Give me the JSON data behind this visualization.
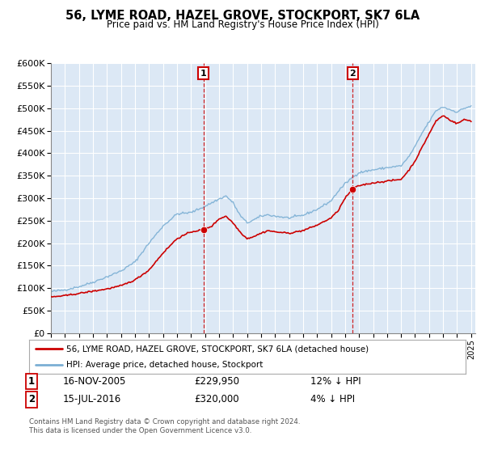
{
  "title": "56, LYME ROAD, HAZEL GROVE, STOCKPORT, SK7 6LA",
  "subtitle": "Price paid vs. HM Land Registry's House Price Index (HPI)",
  "ylim": [
    0,
    600000
  ],
  "yticks": [
    0,
    50000,
    100000,
    150000,
    200000,
    250000,
    300000,
    350000,
    400000,
    450000,
    500000,
    550000,
    600000
  ],
  "xlim_start": 1995.0,
  "xlim_end": 2025.3,
  "hpi_color": "#7bafd4",
  "price_color": "#cc0000",
  "marker_color": "#cc0000",
  "bg_color": "#dce8f5",
  "sale1_x": 2005.88,
  "sale1_y": 229950,
  "sale1_label": "1",
  "sale2_x": 2016.54,
  "sale2_y": 320000,
  "sale2_label": "2",
  "legend_label1": "56, LYME ROAD, HAZEL GROVE, STOCKPORT, SK7 6LA (detached house)",
  "legend_label2": "HPI: Average price, detached house, Stockport",
  "table_row1_num": "1",
  "table_row1_date": "16-NOV-2005",
  "table_row1_price": "£229,950",
  "table_row1_hpi": "12% ↓ HPI",
  "table_row2_num": "2",
  "table_row2_date": "15-JUL-2016",
  "table_row2_price": "£320,000",
  "table_row2_hpi": "4% ↓ HPI",
  "footer1": "Contains HM Land Registry data © Crown copyright and database right 2024.",
  "footer2": "This data is licensed under the Open Government Licence v3.0.",
  "grid_color": "#c8d8e8",
  "hpi_anchors_x": [
    1995.0,
    1996.0,
    1997.0,
    1998.0,
    1999.0,
    2000.0,
    2001.0,
    2002.0,
    2003.0,
    2004.0,
    2005.0,
    2006.0,
    2007.0,
    2007.5,
    2008.0,
    2008.5,
    2009.0,
    2009.5,
    2010.0,
    2010.5,
    2011.0,
    2012.0,
    2013.0,
    2014.0,
    2015.0,
    2015.5,
    2016.0,
    2016.5,
    2017.0,
    2017.5,
    2018.0,
    2019.0,
    2020.0,
    2020.5,
    2021.0,
    2021.5,
    2022.0,
    2022.5,
    2023.0,
    2023.5,
    2024.0,
    2024.5,
    2025.0
  ],
  "hpi_anchors_y": [
    92000,
    96000,
    103000,
    113000,
    125000,
    138000,
    158000,
    200000,
    238000,
    265000,
    268000,
    282000,
    298000,
    305000,
    290000,
    262000,
    245000,
    252000,
    260000,
    263000,
    260000,
    256000,
    262000,
    275000,
    294000,
    315000,
    332000,
    346000,
    357000,
    360000,
    363000,
    368000,
    372000,
    390000,
    415000,
    445000,
    470000,
    495000,
    503000,
    497000,
    492000,
    500000,
    505000
  ],
  "price_anchors_x": [
    1995.0,
    1996.0,
    1997.0,
    1998.0,
    1999.0,
    2000.0,
    2001.0,
    2002.0,
    2003.0,
    2004.0,
    2005.0,
    2005.88,
    2006.5,
    2007.0,
    2007.5,
    2008.0,
    2008.5,
    2009.0,
    2009.5,
    2010.0,
    2010.5,
    2011.0,
    2012.0,
    2013.0,
    2014.0,
    2015.0,
    2015.5,
    2016.0,
    2016.54,
    2017.0,
    2017.5,
    2018.0,
    2019.0,
    2020.0,
    2020.5,
    2021.0,
    2021.5,
    2022.0,
    2022.5,
    2023.0,
    2023.5,
    2024.0,
    2024.5,
    2025.0
  ],
  "price_anchors_y": [
    80000,
    83000,
    88000,
    93000,
    98000,
    105000,
    118000,
    140000,
    178000,
    210000,
    225000,
    229950,
    238000,
    254000,
    260000,
    245000,
    225000,
    210000,
    215000,
    222000,
    228000,
    225000,
    222000,
    228000,
    240000,
    256000,
    272000,
    300000,
    320000,
    328000,
    331000,
    334000,
    338000,
    342000,
    360000,
    383000,
    413000,
    443000,
    472000,
    484000,
    474000,
    466000,
    475000,
    472000
  ]
}
